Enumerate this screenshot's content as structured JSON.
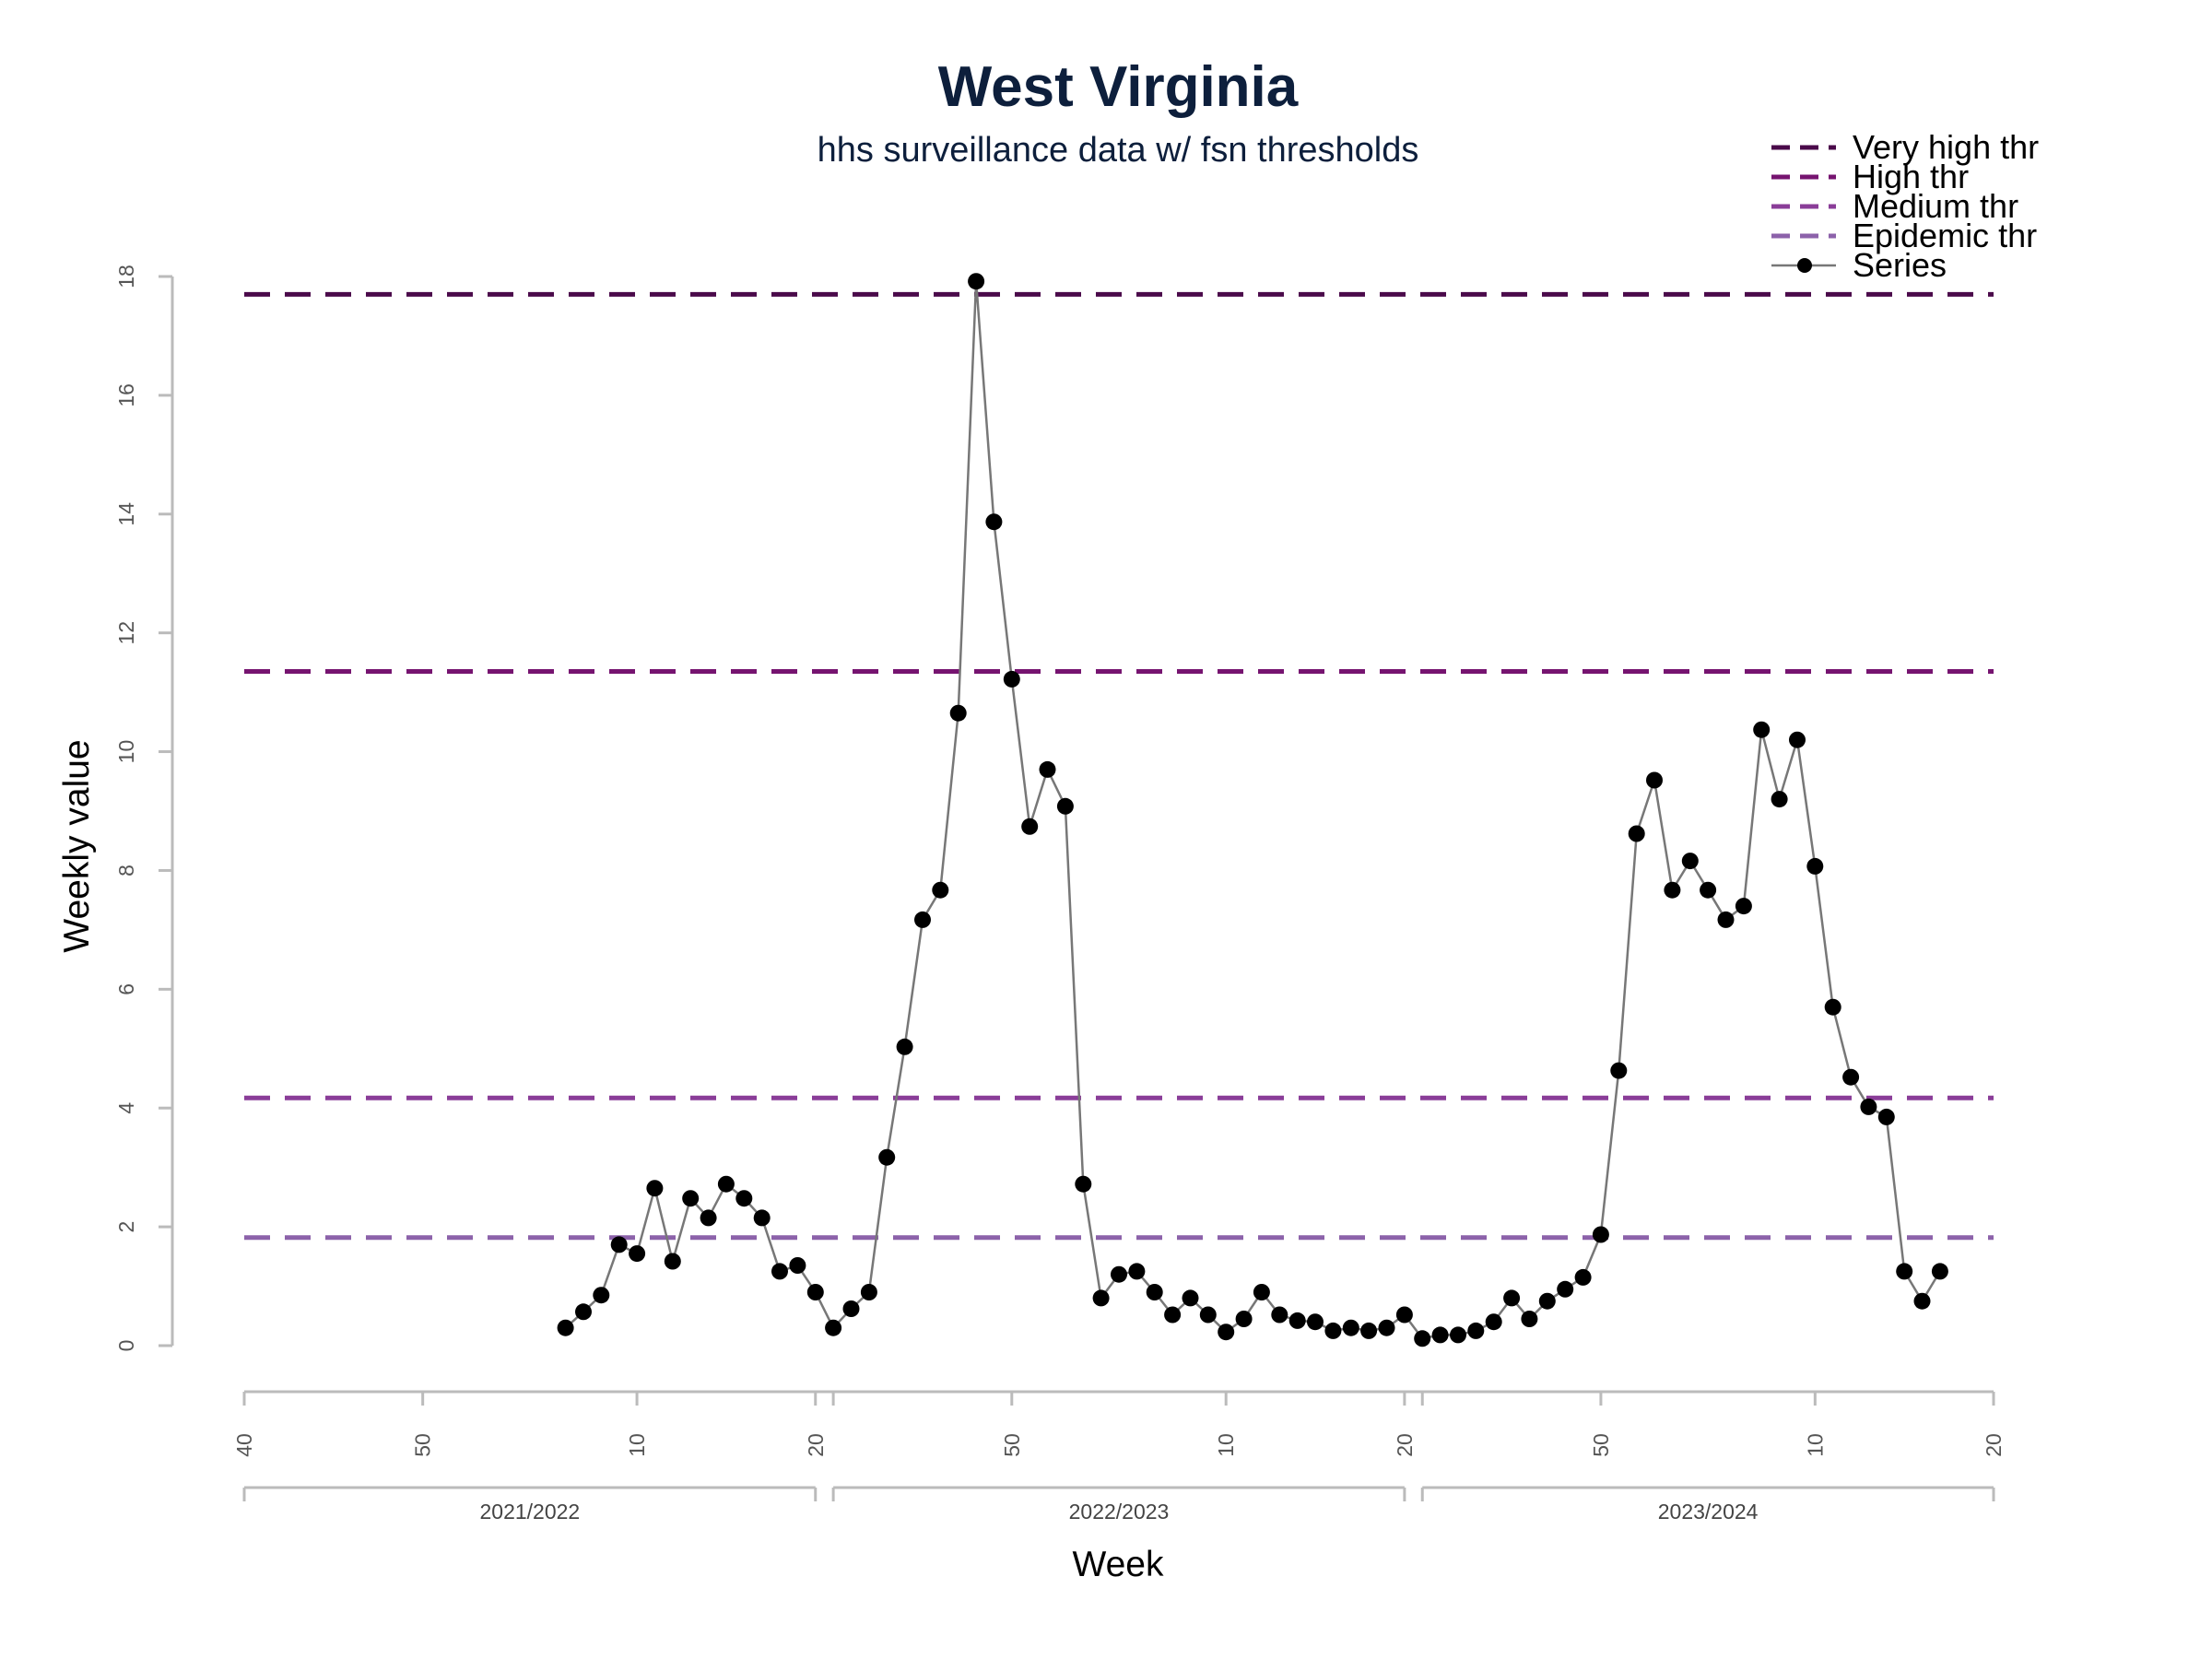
{
  "chart_data": {
    "type": "line",
    "title": "West Virginia",
    "subtitle": "hhs surveillance data w/ fsn thresholds",
    "xlabel": "Week",
    "ylabel": "Weekly value",
    "ylim": [
      0,
      18
    ],
    "yticks": [
      0,
      2,
      4,
      6,
      8,
      10,
      12,
      14,
      16,
      18
    ],
    "grid": false,
    "legend_position": "top-right",
    "x_index_range": [
      0,
      98
    ],
    "week_ticks": [
      {
        "index": 0,
        "label": "40"
      },
      {
        "index": 10,
        "label": "50"
      },
      {
        "index": 22,
        "label": "10"
      },
      {
        "index": 32,
        "label": "20"
      },
      {
        "index": 33,
        "label": ""
      },
      {
        "index": 43,
        "label": "50"
      },
      {
        "index": 55,
        "label": "10"
      },
      {
        "index": 65,
        "label": "20"
      },
      {
        "index": 66,
        "label": ""
      },
      {
        "index": 76,
        "label": "50"
      },
      {
        "index": 88,
        "label": "10"
      },
      {
        "index": 98,
        "label": "20"
      }
    ],
    "seasons": [
      {
        "label": "2021/2022",
        "start": 0,
        "end": 32
      },
      {
        "label": "2022/2023",
        "start": 33,
        "end": 65
      },
      {
        "label": "2023/2024",
        "start": 66,
        "end": 98
      }
    ],
    "thresholds": [
      {
        "name": "Very high thr",
        "value": 17.7,
        "color": "#4a0a4a"
      },
      {
        "name": "High thr",
        "value": 11.35,
        "color": "#761470"
      },
      {
        "name": "Medium thr",
        "value": 4.17,
        "color": "#8a3d98"
      },
      {
        "name": "Epidemic thr",
        "value": 1.82,
        "color": "#8c62aa"
      }
    ],
    "series": [
      {
        "name": "Series",
        "color": "#777777",
        "marker_color": "#000000",
        "x_start_index": 18,
        "values": [
          0.3,
          0.57,
          0.85,
          1.7,
          1.55,
          2.65,
          1.42,
          2.48,
          2.15,
          2.72,
          2.48,
          2.15,
          1.25,
          1.35,
          0.9,
          0.3,
          0.62,
          0.9,
          3.17,
          5.03,
          7.17,
          7.67,
          10.65,
          17.92,
          13.87,
          11.22,
          8.74,
          9.7,
          9.08,
          2.72,
          0.8,
          1.2,
          1.25,
          0.9,
          0.52,
          0.8,
          0.52,
          0.23,
          0.45,
          0.9,
          0.52,
          0.42,
          0.4,
          0.25,
          0.3,
          0.25,
          0.3,
          0.52,
          0.12,
          0.18,
          0.18,
          0.25,
          0.4,
          0.8,
          0.45,
          0.75,
          0.95,
          1.15,
          1.87,
          4.63,
          8.62,
          9.52,
          7.67,
          8.16,
          7.67,
          7.17,
          7.4,
          10.37,
          9.2,
          10.2,
          8.07,
          5.7,
          4.52,
          4.02,
          3.85,
          1.25,
          0.75,
          1.25
        ]
      }
    ]
  }
}
